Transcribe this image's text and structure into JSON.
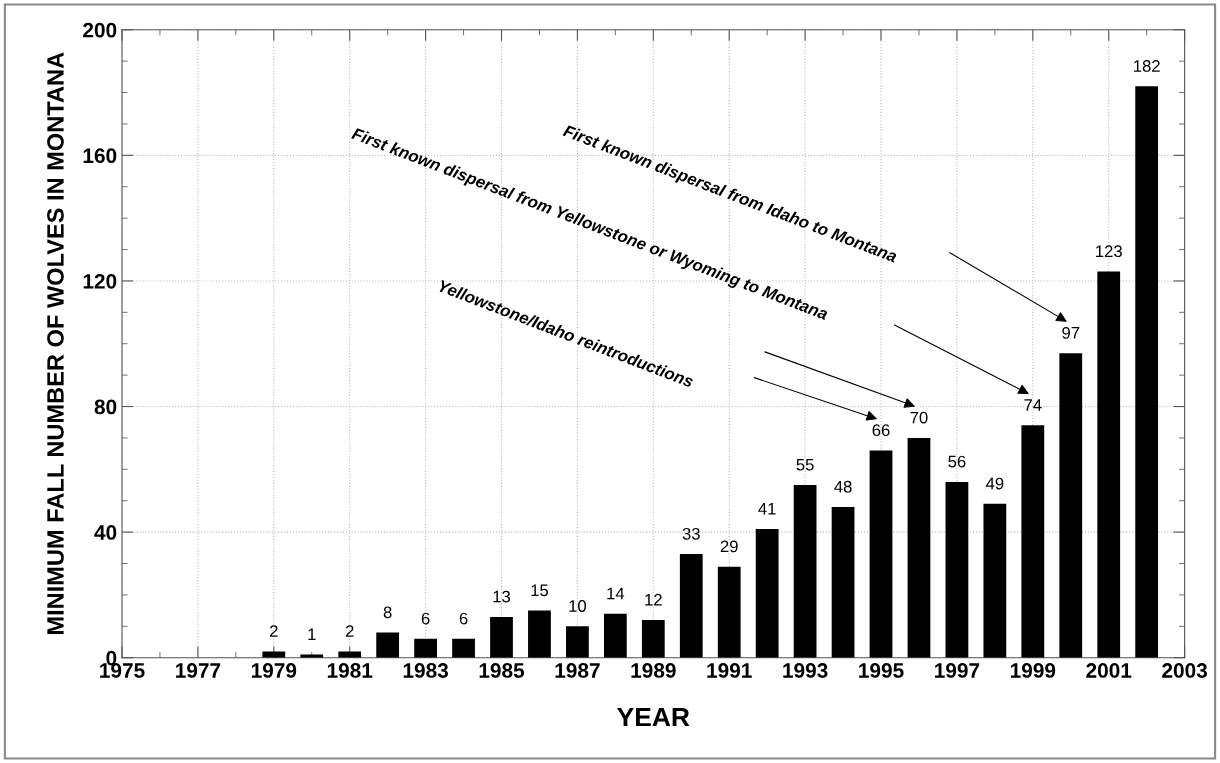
{
  "chart_data": {
    "type": "bar",
    "xlabel": "YEAR",
    "ylabel": "MINIMUM FALL NUMBER OF WOLVES IN MONTANA",
    "x": [
      1979,
      1980,
      1981,
      1982,
      1983,
      1984,
      1985,
      1986,
      1987,
      1988,
      1989,
      1990,
      1991,
      1992,
      1993,
      1994,
      1995,
      1996,
      1997,
      1998,
      1999,
      2000,
      2001,
      2002
    ],
    "values": [
      2,
      1,
      2,
      8,
      6,
      6,
      13,
      15,
      10,
      14,
      12,
      33,
      29,
      41,
      55,
      48,
      66,
      70,
      56,
      49,
      74,
      97,
      123,
      182
    ],
    "color": "#000000",
    "data_labels": true,
    "xlim": [
      1975,
      2003
    ],
    "xticks": [
      1975,
      1977,
      1979,
      1981,
      1983,
      1985,
      1987,
      1989,
      1991,
      1993,
      1995,
      1997,
      1999,
      2001,
      2003
    ],
    "ylim": [
      0,
      200
    ],
    "yticks": [
      0,
      40,
      80,
      120,
      160,
      200
    ],
    "grid": true,
    "annotations": [
      "Yellowstone/Idaho reintroductions",
      "First known dispersal from Yellowstone or Wyoming to Montana",
      "First known dispersal from Idaho to Montana"
    ]
  }
}
